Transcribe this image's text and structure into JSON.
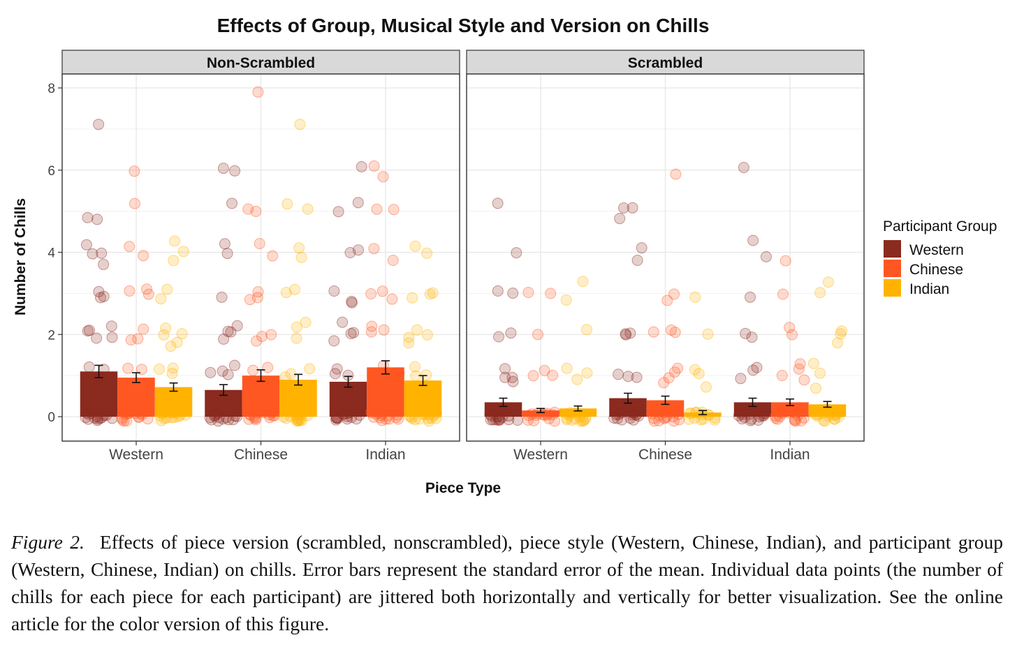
{
  "chart_data": {
    "type": "bar",
    "title": "Effects of Group, Musical Style and Version on Chills",
    "xlabel": "Piece Type",
    "ylabel": "Number of Chills",
    "ylim": [
      -0.5,
      8.3
    ],
    "yticks": [
      0,
      2,
      4,
      6,
      8
    ],
    "categories": [
      "Western",
      "Chinese",
      "Indian"
    ],
    "legend": {
      "title": "Participant Group",
      "position": "right",
      "entries": [
        {
          "name": "Western",
          "color": "#8B2A1E"
        },
        {
          "name": "Chinese",
          "color": "#FF5722"
        },
        {
          "name": "Indian",
          "color": "#FFB300"
        }
      ]
    },
    "panels": [
      {
        "name": "Non-Scrambled",
        "series": [
          {
            "name": "Western",
            "values": [
              1.1,
              0.65,
              0.85
            ],
            "se": [
              0.15,
              0.13,
              0.13
            ]
          },
          {
            "name": "Chinese",
            "values": [
              0.95,
              1.0,
              1.2
            ],
            "se": [
              0.12,
              0.14,
              0.16
            ]
          },
          {
            "name": "Indian",
            "values": [
              0.72,
              0.9,
              0.88
            ],
            "se": [
              0.1,
              0.13,
              0.12
            ]
          }
        ],
        "points": {
          "Western": [
            [
              7.1,
              4.9,
              4.8,
              4.1,
              4.0,
              3.9,
              3.8,
              3.1,
              3.0,
              2.9,
              2.2,
              2.1,
              2.1,
              2.0,
              1.9,
              1.2,
              1.1,
              1.0
            ],
            [
              6.0,
              6.0,
              5.1,
              4.1,
              3.9,
              3.0,
              2.2,
              2.1,
              2.0,
              1.9,
              1.2,
              1.1,
              1.0,
              1.1
            ],
            [
              6.0,
              5.1,
              5.1,
              4.0,
              3.9,
              3.1,
              2.9,
              2.8,
              2.2,
              2.1,
              2.0,
              1.9,
              1.2,
              1.1,
              1.0
            ]
          ],
          "Chinese": [
            [
              5.9,
              5.2,
              4.2,
              4.0,
              3.0,
              3.0,
              2.9,
              2.1,
              2.0,
              1.9,
              1.2,
              1.1
            ],
            [
              7.9,
              5.1,
              5.0,
              4.2,
              4.0,
              3.1,
              3.0,
              2.8,
              2.1,
              2.0,
              1.9,
              1.2,
              1.1
            ],
            [
              6.1,
              5.9,
              5.0,
              5.0,
              4.1,
              3.9,
              3.1,
              3.0,
              2.9,
              2.2,
              2.1,
              2.0,
              1.2,
              1.1,
              1.0
            ]
          ],
          "Indian": [
            [
              4.2,
              4.1,
              3.9,
              3.1,
              2.9,
              2.2,
              2.1,
              2.1,
              1.9,
              1.8,
              1.2,
              1.1,
              1.0
            ],
            [
              7.1,
              5.2,
              5.0,
              4.1,
              3.9,
              3.1,
              3.0,
              2.2,
              2.1,
              2.0,
              1.2,
              1.1,
              1.0
            ],
            [
              4.1,
              4.0,
              3.1,
              3.0,
              2.9,
              2.1,
              2.0,
              2.0,
              1.9,
              1.2,
              1.1,
              1.0
            ]
          ]
        }
      },
      {
        "name": "Scrambled",
        "series": [
          {
            "name": "Western",
            "values": [
              0.35,
              0.45,
              0.35
            ],
            "se": [
              0.1,
              0.12,
              0.1
            ]
          },
          {
            "name": "Chinese",
            "values": [
              0.15,
              0.4,
              0.35
            ],
            "se": [
              0.05,
              0.1,
              0.08
            ]
          },
          {
            "name": "Indian",
            "values": [
              0.2,
              0.1,
              0.3
            ],
            "se": [
              0.06,
              0.05,
              0.07
            ]
          }
        ],
        "points": {
          "Western": [
            [
              5.1,
              4.1,
              3.1,
              2.9,
              2.1,
              1.9,
              1.1,
              1.0,
              0.9,
              0.8
            ],
            [
              5.1,
              5.0,
              4.9,
              4.2,
              3.9,
              2.1,
              2.0,
              1.9,
              1.1,
              1.0,
              0.9
            ],
            [
              6.1,
              4.2,
              4.0,
              2.9,
              2.1,
              1.9,
              1.2,
              1.1,
              0.9
            ]
          ],
          "Chinese": [
            [
              3.0,
              2.9,
              2.0,
              1.2,
              1.0,
              1.0
            ],
            [
              5.9,
              3.0,
              2.9,
              2.1,
              2.1,
              2.0,
              1.2,
              1.1,
              1.0,
              0.9
            ],
            [
              3.9,
              2.9,
              2.1,
              1.9,
              1.2,
              1.1,
              1.0,
              1.0
            ]
          ],
          "Indian": [
            [
              3.2,
              2.9,
              2.2,
              1.1,
              1.0,
              0.9
            ],
            [
              2.9,
              2.0,
              1.2,
              1.1,
              0.8
            ],
            [
              3.2,
              3.0,
              2.1,
              2.0,
              1.9,
              1.2,
              1.0,
              0.8
            ]
          ]
        }
      }
    ]
  },
  "caption": {
    "label": "Figure 2.",
    "text": "Effects of piece version (scrambled, nonscrambled), piece style (Western, Chinese, Indian), and participant group (Western, Chinese, Indian) on chills. Error bars represent the standard error of the mean. Individual data points (the number of chills for each piece for each participant) are jittered both horizontally and vertically for better visualization. See the online article for the color version of this figure."
  }
}
